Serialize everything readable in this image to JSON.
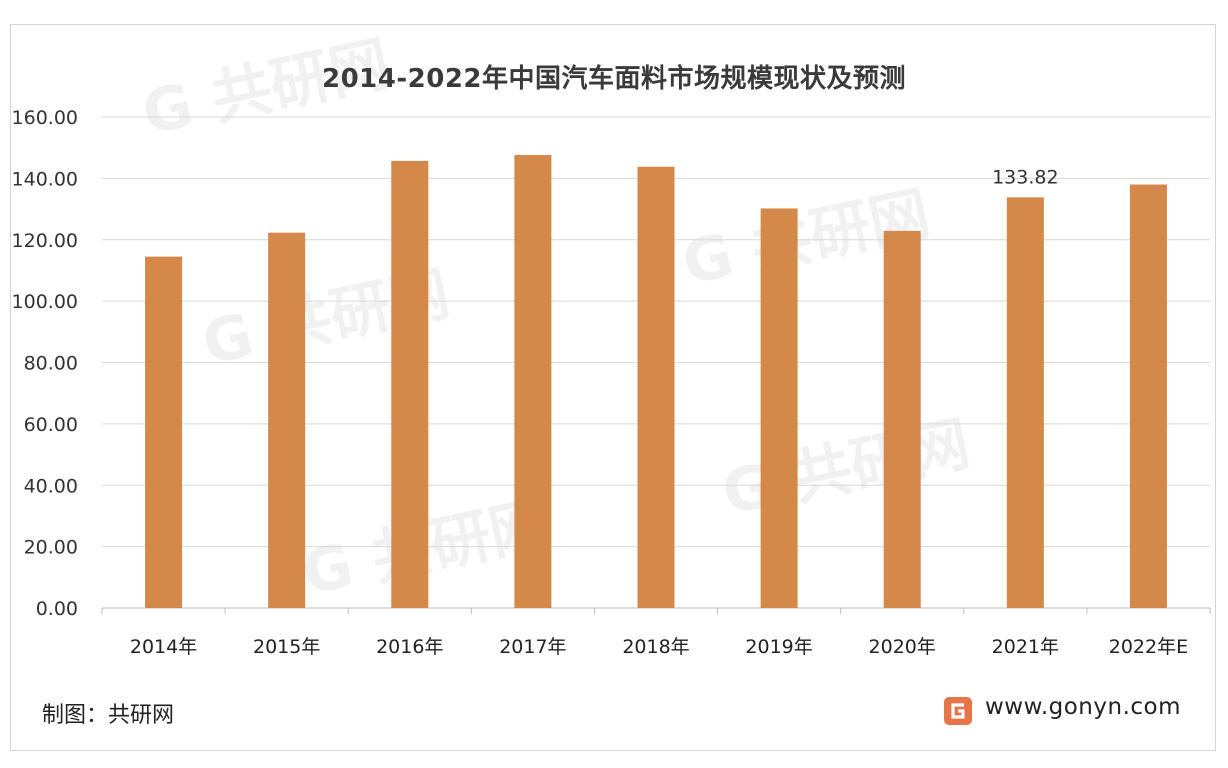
{
  "chart_data": {
    "type": "bar",
    "title": "2014-2022年中国汽车面料市场规模现状及预测",
    "categories": [
      "2014年",
      "2015年",
      "2016年",
      "2017年",
      "2018年",
      "2019年",
      "2020年",
      "2021年",
      "2022年E"
    ],
    "values": [
      114.5,
      122.3,
      145.7,
      147.6,
      143.8,
      130.2,
      122.9,
      133.82,
      138.0
    ],
    "data_labels": [
      {
        "category": "2021年",
        "label": "133.82"
      }
    ],
    "ylim": [
      0,
      160
    ],
    "y_ticks": [
      "0.00",
      "20.00",
      "40.00",
      "60.00",
      "80.00",
      "100.00",
      "120.00",
      "140.00",
      "160.00"
    ],
    "grid": true,
    "bar_color": "#d4894a"
  },
  "footer": {
    "source": "制图：共研网",
    "site": "www.gonyn.com",
    "logo_icon": "gonyn-logo-icon"
  }
}
